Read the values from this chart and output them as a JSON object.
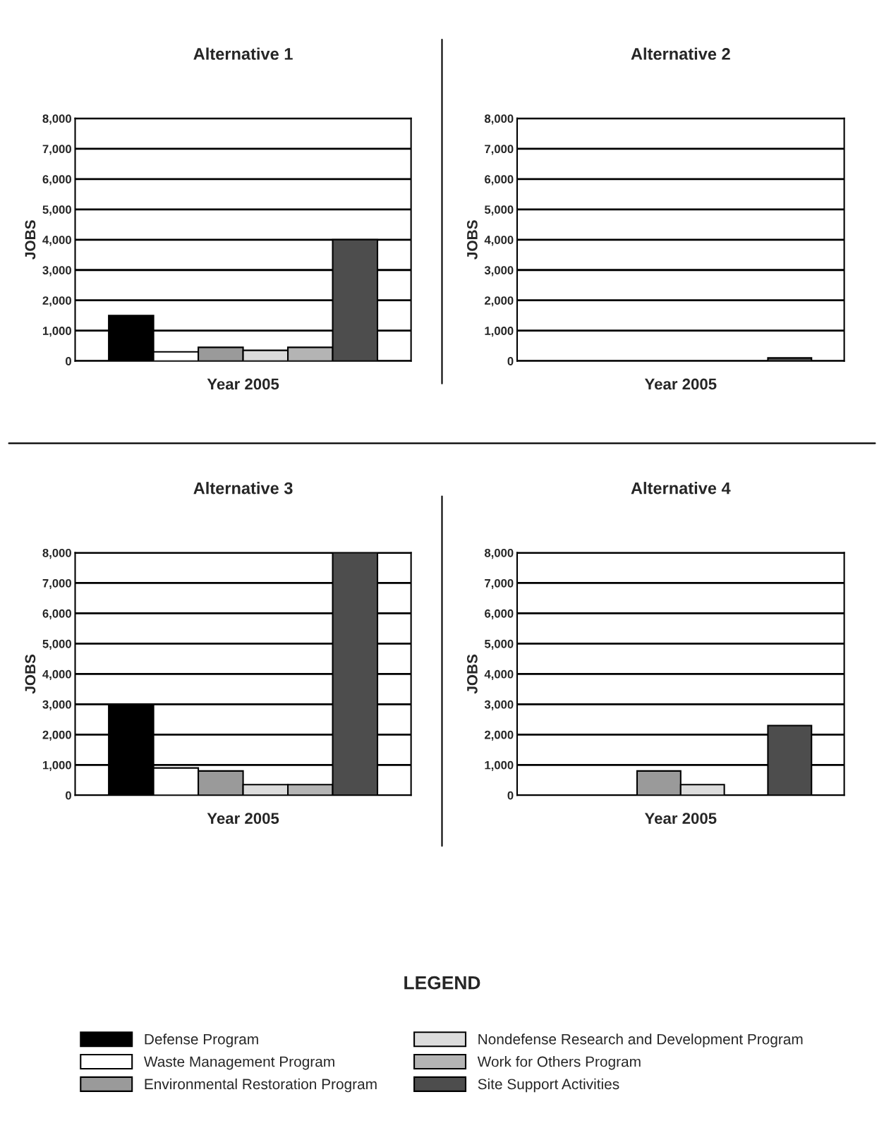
{
  "chart_data": [
    {
      "type": "bar",
      "title": "Alternative 1",
      "xlabel": "Year 2005",
      "ylabel": "JOBS",
      "categories": [
        null
      ],
      "ylim": [
        0,
        8000
      ],
      "yticks": [
        {
          "value": 0,
          "label": "0"
        },
        {
          "value": 1000,
          "label": "1,000"
        },
        {
          "value": 2000,
          "label": "2,000"
        },
        {
          "value": 3000,
          "label": "3,000"
        },
        {
          "value": 4000,
          "label": "4,000"
        },
        {
          "value": 5000,
          "label": "5,000"
        },
        {
          "value": 6000,
          "label": "6,000"
        },
        {
          "value": 7000,
          "label": "7,000"
        },
        {
          "value": 8000,
          "label": "8,000"
        }
      ],
      "grid": "y",
      "legend": "bottom",
      "legend_title": "LEGEND",
      "series": [
        {
          "name": "Defense Program",
          "color": "#000000",
          "values": [
            1500
          ]
        },
        {
          "name": "Waste Management Program",
          "color": "#ffffff",
          "values": [
            300
          ]
        },
        {
          "name": "Environmental Restoration Program",
          "color": "#9a9a9a",
          "values": [
            450
          ]
        },
        {
          "name": "Nondefense Research and Development Program",
          "color": "#dcdcdc",
          "values": [
            350
          ]
        },
        {
          "name": "Work for Others Program",
          "color": "#b4b4b4",
          "values": [
            450
          ]
        },
        {
          "name": "Site Support Activities",
          "color": "#4d4d4d",
          "values": [
            4000
          ]
        }
      ]
    },
    {
      "type": "bar",
      "title": "Alternative 2",
      "xlabel": "Year 2005",
      "ylabel": "JOBS",
      "categories": [
        null
      ],
      "ylim": [
        0,
        8000
      ],
      "yticks": [
        {
          "value": 0,
          "label": "0"
        },
        {
          "value": 1000,
          "label": "1,000"
        },
        {
          "value": 2000,
          "label": "2,000"
        },
        {
          "value": 3000,
          "label": "3,000"
        },
        {
          "value": 4000,
          "label": "4,000"
        },
        {
          "value": 5000,
          "label": "5,000"
        },
        {
          "value": 6000,
          "label": "6,000"
        },
        {
          "value": 7000,
          "label": "7,000"
        },
        {
          "value": 8000,
          "label": "8,000"
        }
      ],
      "grid": "y",
      "series": [
        {
          "values": [
            null
          ]
        },
        {
          "values": [
            null
          ]
        },
        {
          "values": [
            null
          ]
        },
        {
          "values": [
            null
          ]
        },
        {
          "values": [
            null
          ]
        },
        {
          "color": "#4d4d4d",
          "values": [
            100
          ]
        }
      ]
    },
    {
      "type": "bar",
      "title": "Alternative 3",
      "xlabel": "Year 2005",
      "ylabel": "JOBS",
      "categories": [
        null
      ],
      "ylim": [
        0,
        8000
      ],
      "yticks": [
        {
          "value": 0,
          "label": "0"
        },
        {
          "value": 1000,
          "label": "1,000"
        },
        {
          "value": 2000,
          "label": "2,000"
        },
        {
          "value": 3000,
          "label": "3,000"
        },
        {
          "value": 4000,
          "label": "4,000"
        },
        {
          "value": 5000,
          "label": "5,000"
        },
        {
          "value": 6000,
          "label": "6,000"
        },
        {
          "value": 7000,
          "label": "7,000"
        },
        {
          "value": 8000,
          "label": "8,000"
        }
      ],
      "grid": "y",
      "series": [
        {
          "color": "#000000",
          "values": [
            3000
          ]
        },
        {
          "color": "#ffffff",
          "values": [
            900
          ]
        },
        {
          "color": "#9a9a9a",
          "values": [
            800
          ]
        },
        {
          "color": "#dcdcdc",
          "values": [
            350
          ]
        },
        {
          "color": "#b4b4b4",
          "values": [
            350
          ]
        },
        {
          "color": "#4d4d4d",
          "values": [
            8000
          ]
        }
      ]
    },
    {
      "type": "bar",
      "title": "Alternative 4",
      "xlabel": "Year 2005",
      "ylabel": "JOBS",
      "categories": [
        null
      ],
      "ylim": [
        0,
        8000
      ],
      "yticks": [
        {
          "value": 0,
          "label": "0"
        },
        {
          "value": 1000,
          "label": "1,000"
        },
        {
          "value": 2000,
          "label": "2,000"
        },
        {
          "value": 3000,
          "label": "3,000"
        },
        {
          "value": 4000,
          "label": "4,000"
        },
        {
          "value": 5000,
          "label": "5,000"
        },
        {
          "value": 6000,
          "label": "6,000"
        },
        {
          "value": 7000,
          "label": "7,000"
        },
        {
          "value": 8000,
          "label": "8,000"
        }
      ],
      "grid": "y",
      "series": [
        {
          "values": [
            null
          ]
        },
        {
          "values": [
            null
          ]
        },
        {
          "color": "#9a9a9a",
          "values": [
            800
          ]
        },
        {
          "color": "#dcdcdc",
          "values": [
            350
          ]
        },
        {
          "values": [
            null
          ]
        },
        {
          "color": "#4d4d4d",
          "values": [
            2300
          ]
        }
      ]
    }
  ]
}
